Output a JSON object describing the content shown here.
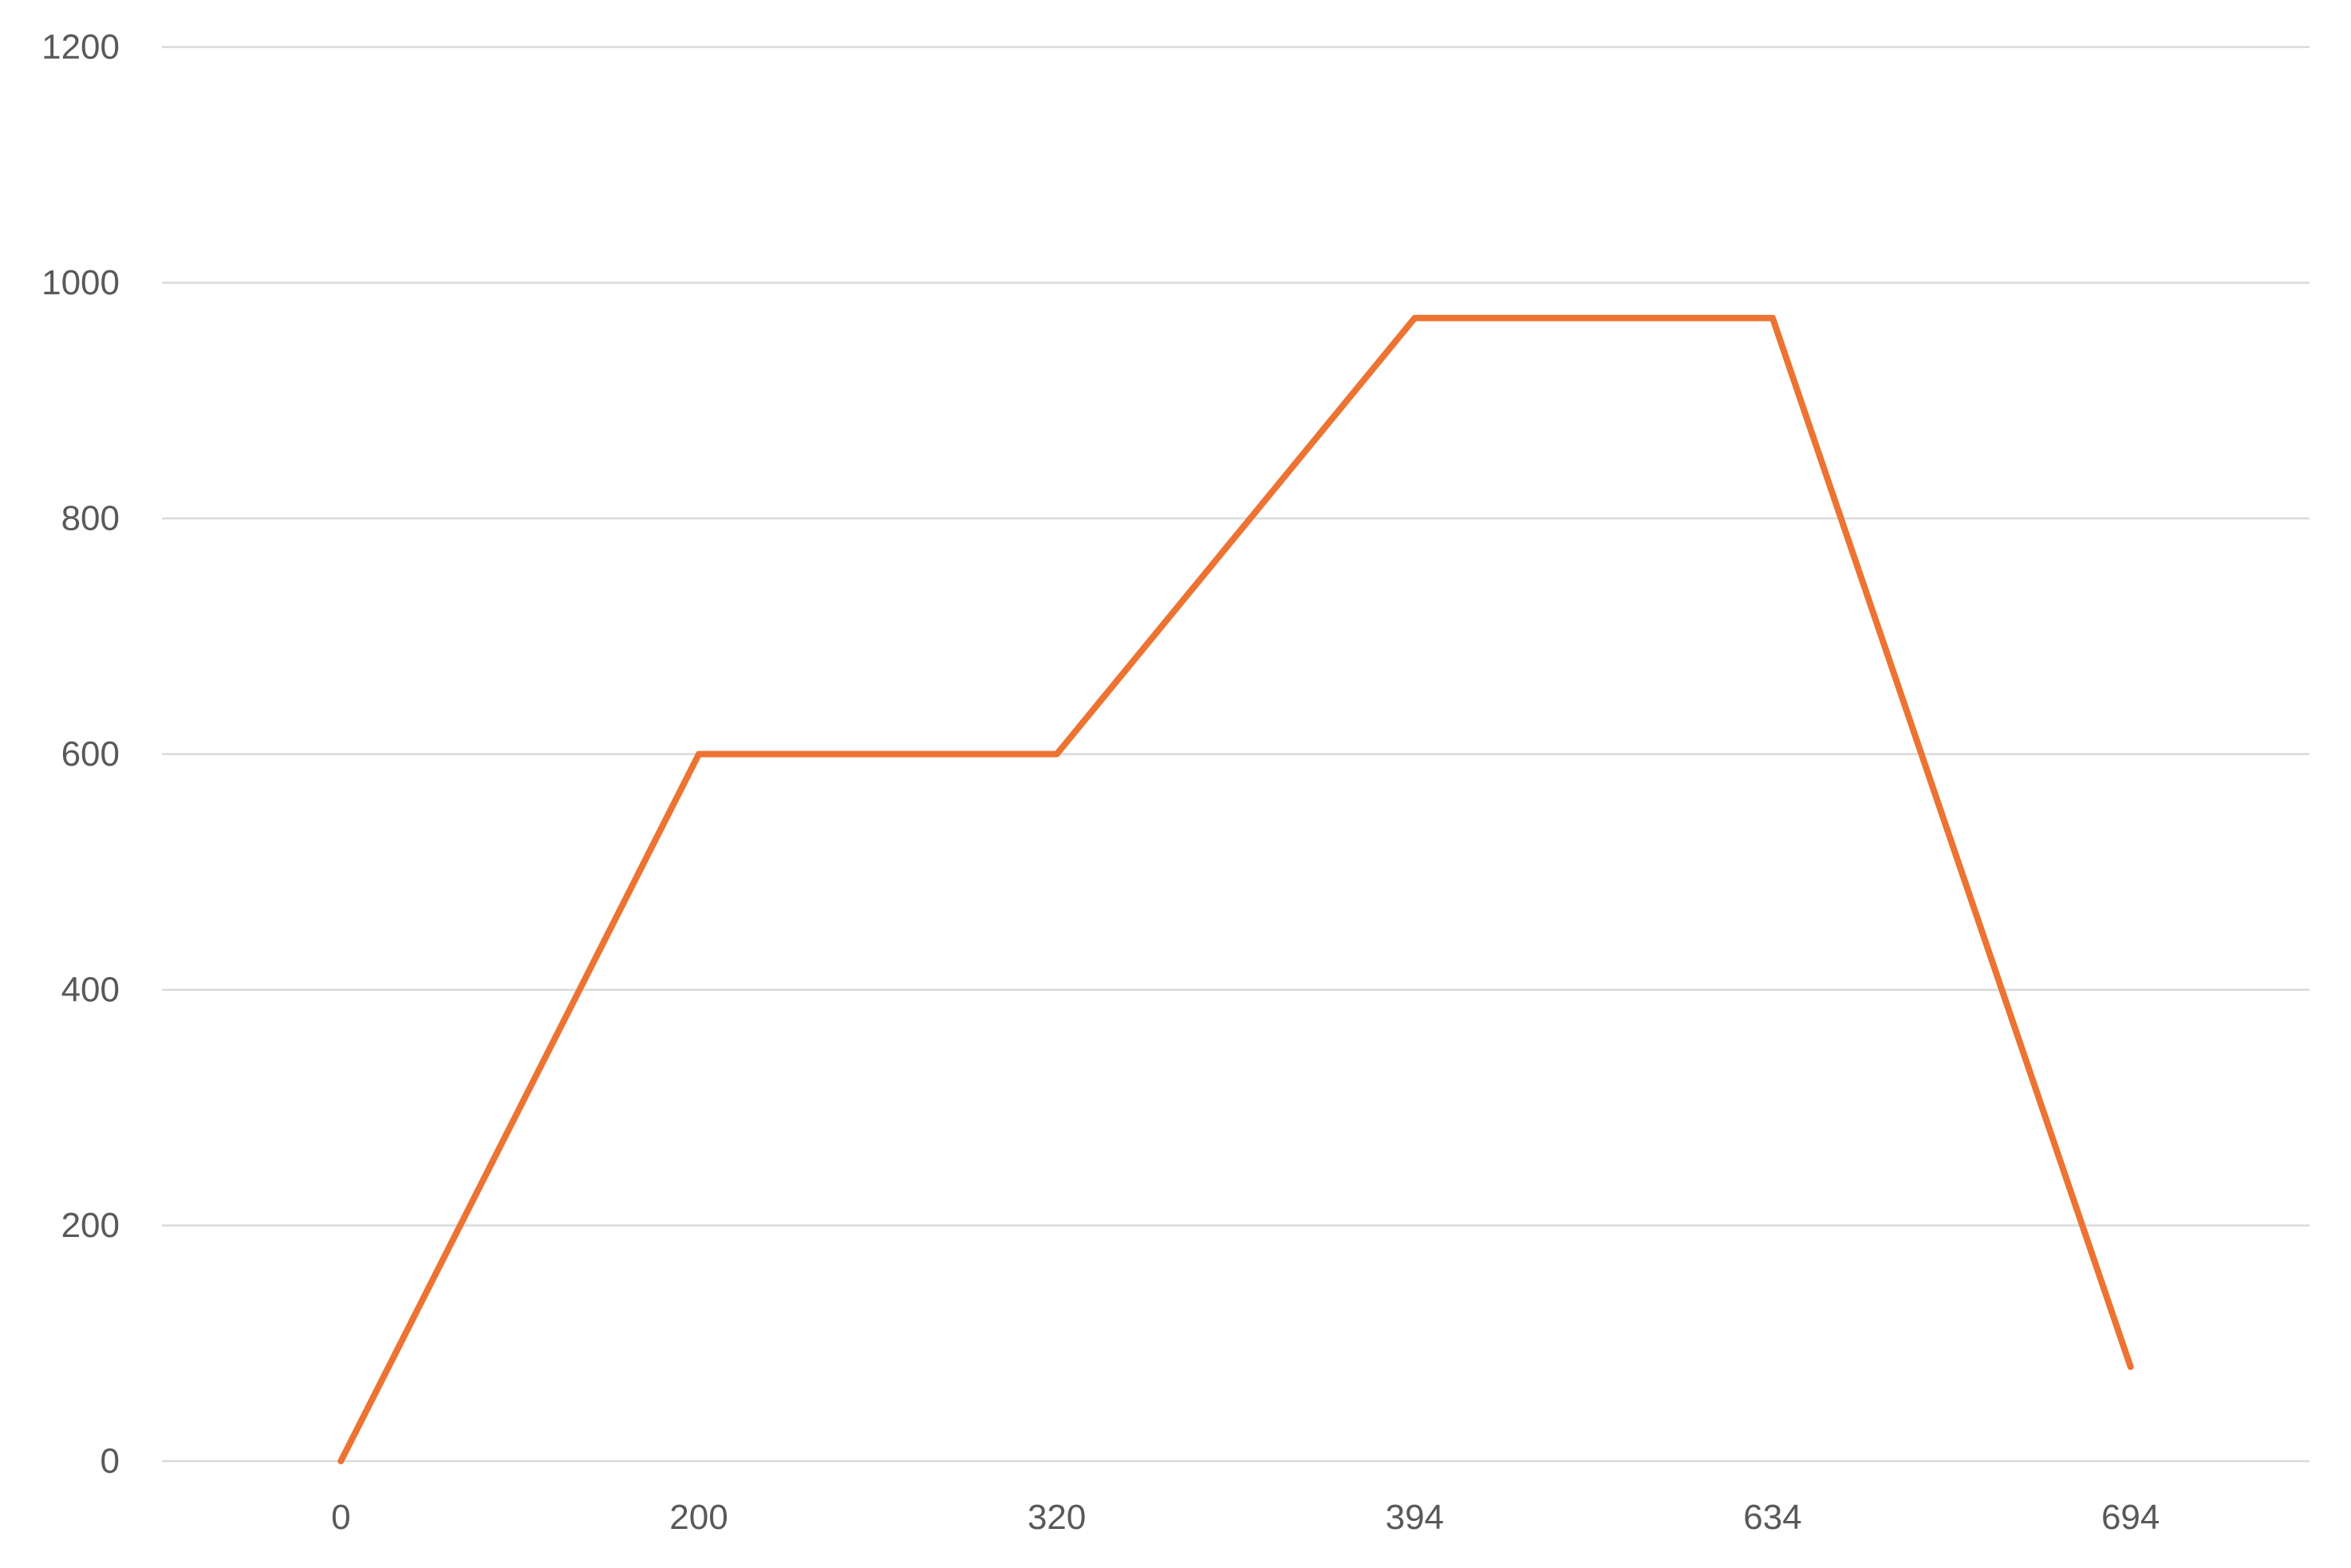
{
  "chart_data": {
    "type": "line",
    "categories": [
      "0",
      "200",
      "320",
      "394",
      "634",
      "694"
    ],
    "series": [
      {
        "values": [
          0,
          600,
          600,
          970,
          970,
          80
        ]
      }
    ],
    "ylim": [
      0,
      1200
    ],
    "yticks": [
      "0",
      "200",
      "400",
      "600",
      "800",
      "1000",
      "1200"
    ],
    "grid": true,
    "legend": "none",
    "colors": {
      "series": "#ED7332",
      "grid": "#D9D9D9",
      "text": "#595959"
    }
  }
}
